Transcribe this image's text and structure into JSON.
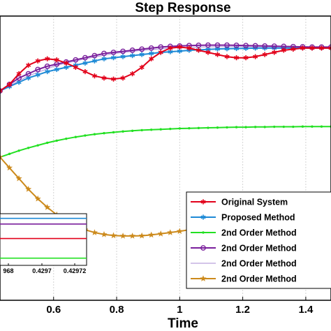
{
  "chart_data": {
    "type": "line",
    "title": "Step Response",
    "xlabel": "Time",
    "ylabel": "",
    "xlim": [
      0.43,
      1.48
    ],
    "ylim": [
      0.02,
      1.35
    ],
    "xticks": [
      0.6,
      0.8,
      1,
      1.2,
      1.4
    ],
    "xtick_labels": [
      "0.6",
      "0.8",
      "1",
      "1.2",
      "1.4"
    ],
    "grid": true,
    "legend_position": "bottom-right",
    "series": [
      {
        "name": "Original System",
        "color": "#e2001a",
        "marker": "asterisk",
        "x": [
          0.43,
          0.46,
          0.49,
          0.52,
          0.55,
          0.58,
          0.61,
          0.64,
          0.67,
          0.7,
          0.73,
          0.76,
          0.79,
          0.82,
          0.85,
          0.88,
          0.91,
          0.94,
          0.97,
          1.0,
          1.03,
          1.06,
          1.09,
          1.12,
          1.15,
          1.18,
          1.21,
          1.24,
          1.27,
          1.3,
          1.33,
          1.36,
          1.39,
          1.42,
          1.45,
          1.48
        ],
        "y": [
          1.0,
          1.03,
          1.08,
          1.12,
          1.14,
          1.15,
          1.145,
          1.13,
          1.11,
          1.09,
          1.07,
          1.06,
          1.055,
          1.06,
          1.08,
          1.11,
          1.15,
          1.18,
          1.2,
          1.205,
          1.2,
          1.19,
          1.18,
          1.17,
          1.16,
          1.155,
          1.155,
          1.16,
          1.17,
          1.18,
          1.19,
          1.195,
          1.2,
          1.2,
          1.2,
          1.2
        ]
      },
      {
        "name": "Proposed Method",
        "color": "#1e8ad6",
        "marker": "asterisk",
        "x": [
          0.43,
          0.46,
          0.49,
          0.52,
          0.55,
          0.58,
          0.61,
          0.64,
          0.67,
          0.7,
          0.73,
          0.76,
          0.79,
          0.82,
          0.85,
          0.88,
          0.91,
          0.94,
          0.97,
          1.0,
          1.03,
          1.06,
          1.09,
          1.12,
          1.15,
          1.18,
          1.21,
          1.24,
          1.27,
          1.3,
          1.33,
          1.36,
          1.39,
          1.42,
          1.45,
          1.48
        ],
        "y": [
          1.0,
          1.02,
          1.04,
          1.06,
          1.075,
          1.09,
          1.1,
          1.11,
          1.12,
          1.13,
          1.14,
          1.15,
          1.155,
          1.16,
          1.165,
          1.17,
          1.175,
          1.18,
          1.183,
          1.186,
          1.19,
          1.192,
          1.194,
          1.196,
          1.197,
          1.198,
          1.199,
          1.2,
          1.2,
          1.2,
          1.2,
          1.2,
          1.2,
          1.2,
          1.2,
          1.2
        ]
      },
      {
        "name": "2nd Order Method",
        "color": "#22e022",
        "marker": "dot",
        "x": [
          0.43,
          0.46,
          0.49,
          0.52,
          0.55,
          0.58,
          0.61,
          0.64,
          0.67,
          0.7,
          0.73,
          0.76,
          0.79,
          0.82,
          0.85,
          0.88,
          0.91,
          0.94,
          0.97,
          1.0,
          1.03,
          1.06,
          1.09,
          1.12,
          1.15,
          1.18,
          1.21,
          1.24,
          1.27,
          1.3,
          1.33,
          1.36,
          1.39,
          1.42,
          1.45,
          1.48
        ],
        "y": [
          0.69,
          0.705,
          0.72,
          0.733,
          0.745,
          0.757,
          0.767,
          0.776,
          0.784,
          0.791,
          0.797,
          0.802,
          0.806,
          0.81,
          0.813,
          0.816,
          0.818,
          0.82,
          0.822,
          0.824,
          0.825,
          0.826,
          0.827,
          0.828,
          0.829,
          0.83,
          0.83,
          0.831,
          0.831,
          0.832,
          0.832,
          0.832,
          0.833,
          0.833,
          0.833,
          0.833
        ]
      },
      {
        "name": "2nd Order Method",
        "color": "#7a1f9c",
        "marker": "circle",
        "x": [
          0.43,
          0.46,
          0.49,
          0.52,
          0.55,
          0.58,
          0.61,
          0.64,
          0.67,
          0.7,
          0.73,
          0.76,
          0.79,
          0.82,
          0.85,
          0.88,
          0.91,
          0.94,
          0.97,
          1.0,
          1.03,
          1.06,
          1.09,
          1.12,
          1.15,
          1.18,
          1.21,
          1.24,
          1.27,
          1.3,
          1.33,
          1.36,
          1.39,
          1.42,
          1.45,
          1.48
        ],
        "y": [
          1.0,
          1.03,
          1.06,
          1.08,
          1.1,
          1.115,
          1.125,
          1.135,
          1.145,
          1.155,
          1.165,
          1.175,
          1.18,
          1.185,
          1.19,
          1.195,
          1.2,
          1.205,
          1.208,
          1.21,
          1.212,
          1.213,
          1.214,
          1.214,
          1.214,
          1.213,
          1.212,
          1.211,
          1.21,
          1.209,
          1.208,
          1.207,
          1.206,
          1.205,
          1.205,
          1.205
        ]
      },
      {
        "name": "2nd Order Method",
        "color": "#b9a0dc",
        "marker": "none",
        "x": [
          0.43,
          0.52,
          0.61,
          0.7,
          0.79,
          0.88,
          0.97,
          1.06,
          1.15,
          1.24,
          1.33,
          1.42,
          1.48
        ],
        "y": [
          1.0,
          1.07,
          1.12,
          1.15,
          1.175,
          1.19,
          1.2,
          1.205,
          1.207,
          1.207,
          1.206,
          1.205,
          1.205
        ]
      },
      {
        "name": "2nd Order Method",
        "color": "#cc8a1c",
        "marker": "star",
        "x": [
          0.43,
          0.46,
          0.49,
          0.52,
          0.55,
          0.58,
          0.61,
          0.64,
          0.67,
          0.7,
          0.73,
          0.76,
          0.79,
          0.82,
          0.85,
          0.88,
          0.91,
          0.94,
          0.97,
          1.0,
          1.03,
          1.06,
          1.09,
          1.12,
          1.15,
          1.18,
          1.21,
          1.24,
          1.27,
          1.3,
          1.33,
          1.36,
          1.39,
          1.42,
          1.45,
          1.48
        ],
        "y": [
          0.69,
          0.64,
          0.59,
          0.54,
          0.495,
          0.455,
          0.42,
          0.39,
          0.368,
          0.35,
          0.337,
          0.328,
          0.323,
          0.321,
          0.321,
          0.322,
          0.326,
          0.331,
          0.337,
          0.343,
          0.35,
          0.357,
          0.364,
          0.371,
          0.377,
          0.383,
          0.389,
          0.394,
          0.398,
          0.402,
          0.405,
          0.408,
          0.41,
          0.412,
          0.413,
          0.414
        ]
      }
    ],
    "inset": {
      "xtick_labels": [
        "968",
        "0.4297",
        "0.42972"
      ],
      "lines": [
        {
          "color": "#1e8ad6",
          "level": 0.91
        },
        {
          "color": "#7a1f9c",
          "level": 0.8
        },
        {
          "color": "#e2001a",
          "level": 0.52
        },
        {
          "color": "#22e022",
          "level": 0.14
        }
      ]
    }
  }
}
